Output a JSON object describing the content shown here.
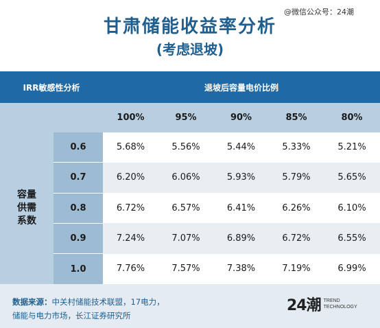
{
  "title": "甘肃储能收益率分析",
  "subtitle": "(考虑退坡)",
  "watermark": "@微信公众号：24潮",
  "table": {
    "corner_header": "IRR敏感性分析",
    "group_header": "退坡后容量电价比例",
    "columns": [
      "100%",
      "95%",
      "90%",
      "85%",
      "80%"
    ],
    "row_group_label": [
      "容量",
      "供需",
      "系数"
    ],
    "rows": [
      {
        "label": "0.6",
        "values": [
          "5.68%",
          "5.56%",
          "5.44%",
          "5.33%",
          "5.21%"
        ]
      },
      {
        "label": "0.7",
        "values": [
          "6.20%",
          "6.06%",
          "5.93%",
          "5.79%",
          "5.65%"
        ]
      },
      {
        "label": "0.8",
        "values": [
          "6.72%",
          "6.57%",
          "6.41%",
          "6.26%",
          "6.10%"
        ]
      },
      {
        "label": "0.9",
        "values": [
          "7.24%",
          "7.07%",
          "6.89%",
          "6.72%",
          "6.55%"
        ]
      },
      {
        "label": "1.0",
        "values": [
          "7.76%",
          "7.57%",
          "7.38%",
          "7.19%",
          "6.99%"
        ]
      }
    ]
  },
  "footer": {
    "source_label": "数据来源：",
    "source_line1": "中关村储能技术联盟，17电力，",
    "source_line2": "储能与电力市场，长江证券研究所",
    "logo_mark": "24潮",
    "logo_line1": "TREND",
    "logo_line2": "TECHNOLOGY"
  },
  "colors": {
    "title": "#1f5f8f",
    "header_dark": "#1f6aa6",
    "header_light": "#b8cfe2",
    "row_label": "#9dbbd3",
    "row_alt": "#e9eef3",
    "footer_bg": "#e4ebf2"
  }
}
